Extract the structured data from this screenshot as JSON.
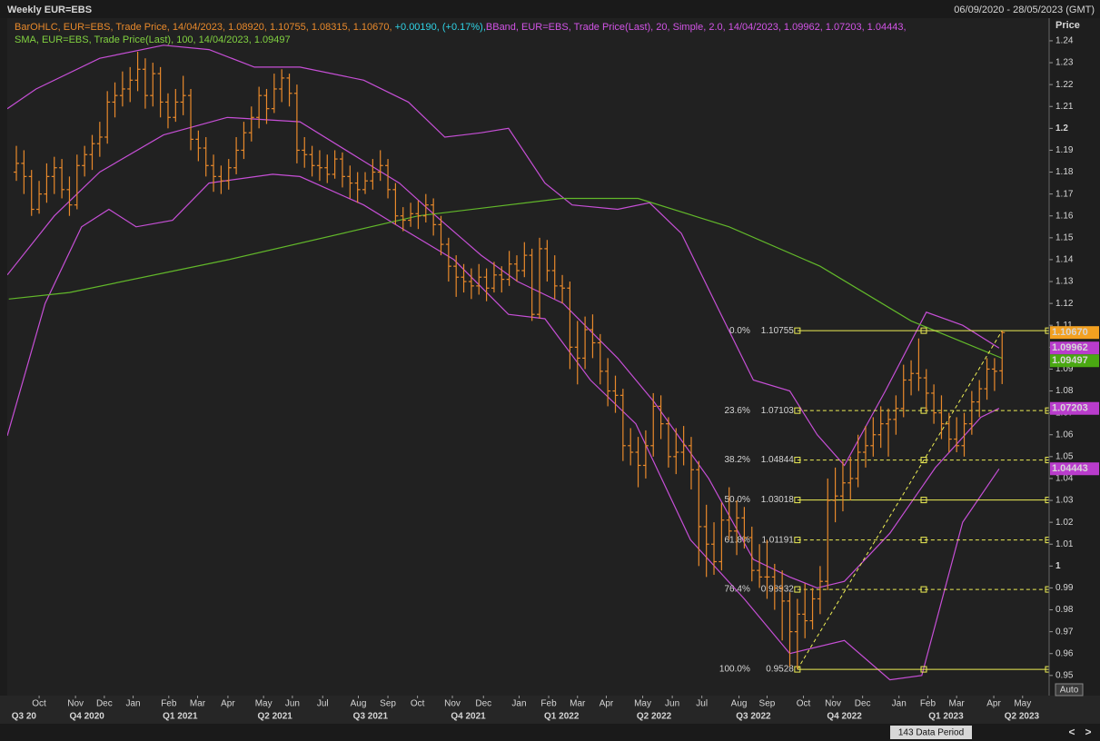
{
  "chart_data": {
    "type": "ohlc",
    "title": "Weekly EUR=EBS",
    "date_range": "06/09/2020 - 28/05/2023 (GMT)",
    "legend": {
      "ohlc": "BarOHLC, EUR=EBS, Trade Price,  14/04/2023, 1.08920, 1.10755, 1.08315, 1.10670,",
      "change": "+0.00190, (+0.17%),",
      "bband": "BBand, EUR=EBS, Trade Price(Last),  20, Simple, 2.0, 14/04/2023, 1.09962, 1.07203, 1.04443,",
      "sma": "SMA, EUR=EBS, Trade Price(Last),  100, 14/04/2023, 1.09497"
    },
    "legend_colors": {
      "ohlc": "#e8892b",
      "change": "#2fd3e6",
      "bband": "#d254e6",
      "sma": "#80d040"
    },
    "y_label": "Price",
    "color": "#e8892b",
    "ohlc": [
      [
        1.18,
        1.192,
        1.176,
        1.184
      ],
      [
        1.184,
        1.19,
        1.17,
        1.178
      ],
      [
        1.178,
        1.181,
        1.16,
        1.163
      ],
      [
        1.163,
        1.176,
        1.161,
        1.17
      ],
      [
        1.17,
        1.184,
        1.166,
        1.178
      ],
      [
        1.178,
        1.187,
        1.17,
        1.182
      ],
      [
        1.182,
        1.186,
        1.168,
        1.172
      ],
      [
        1.172,
        1.178,
        1.16,
        1.165
      ],
      [
        1.165,
        1.188,
        1.163,
        1.183
      ],
      [
        1.183,
        1.192,
        1.178,
        1.188
      ],
      [
        1.188,
        1.197,
        1.181,
        1.193
      ],
      [
        1.193,
        1.203,
        1.187,
        1.196
      ],
      [
        1.196,
        1.217,
        1.193,
        1.212
      ],
      [
        1.212,
        1.221,
        1.205,
        1.215
      ],
      [
        1.215,
        1.226,
        1.21,
        1.218
      ],
      [
        1.218,
        1.228,
        1.212,
        1.222
      ],
      [
        1.222,
        1.235,
        1.217,
        1.227
      ],
      [
        1.227,
        1.232,
        1.209,
        1.215
      ],
      [
        1.215,
        1.23,
        1.21,
        1.225
      ],
      [
        1.225,
        1.228,
        1.205,
        1.212
      ],
      [
        1.212,
        1.216,
        1.2,
        1.205
      ],
      [
        1.205,
        1.218,
        1.203,
        1.212
      ],
      [
        1.212,
        1.224,
        1.206,
        1.215
      ],
      [
        1.215,
        1.218,
        1.19,
        1.195
      ],
      [
        1.195,
        1.199,
        1.185,
        1.191
      ],
      [
        1.191,
        1.196,
        1.178,
        1.183
      ],
      [
        1.183,
        1.188,
        1.171,
        1.178
      ],
      [
        1.178,
        1.183,
        1.17,
        1.176
      ],
      [
        1.176,
        1.186,
        1.172,
        1.182
      ],
      [
        1.182,
        1.196,
        1.179,
        1.19
      ],
      [
        1.19,
        1.203,
        1.186,
        1.198
      ],
      [
        1.198,
        1.21,
        1.194,
        1.205
      ],
      [
        1.205,
        1.219,
        1.2,
        1.215
      ],
      [
        1.215,
        1.218,
        1.202,
        1.209
      ],
      [
        1.209,
        1.225,
        1.207,
        1.218
      ],
      [
        1.218,
        1.227,
        1.212,
        1.223
      ],
      [
        1.223,
        1.225,
        1.21,
        1.216
      ],
      [
        1.216,
        1.22,
        1.184,
        1.19
      ],
      [
        1.19,
        1.196,
        1.182,
        1.188
      ],
      [
        1.188,
        1.192,
        1.178,
        1.183
      ],
      [
        1.183,
        1.19,
        1.176,
        1.182
      ],
      [
        1.182,
        1.188,
        1.175,
        1.179
      ],
      [
        1.179,
        1.19,
        1.177,
        1.186
      ],
      [
        1.186,
        1.189,
        1.173,
        1.178
      ],
      [
        1.178,
        1.183,
        1.168,
        1.175
      ],
      [
        1.175,
        1.18,
        1.166,
        1.172
      ],
      [
        1.172,
        1.18,
        1.17,
        1.176
      ],
      [
        1.176,
        1.186,
        1.172,
        1.18
      ],
      [
        1.18,
        1.19,
        1.176,
        1.183
      ],
      [
        1.183,
        1.186,
        1.168,
        1.172
      ],
      [
        1.172,
        1.175,
        1.156,
        1.16
      ],
      [
        1.16,
        1.164,
        1.153,
        1.158
      ],
      [
        1.158,
        1.166,
        1.155,
        1.161
      ],
      [
        1.161,
        1.167,
        1.154,
        1.16
      ],
      [
        1.16,
        1.17,
        1.157,
        1.165
      ],
      [
        1.165,
        1.168,
        1.151,
        1.156
      ],
      [
        1.156,
        1.16,
        1.142,
        1.147
      ],
      [
        1.147,
        1.15,
        1.13,
        1.137
      ],
      [
        1.137,
        1.142,
        1.123,
        1.132
      ],
      [
        1.132,
        1.138,
        1.125,
        1.13
      ],
      [
        1.13,
        1.136,
        1.122,
        1.128
      ],
      [
        1.128,
        1.138,
        1.124,
        1.132
      ],
      [
        1.132,
        1.136,
        1.121,
        1.127
      ],
      [
        1.127,
        1.139,
        1.125,
        1.133
      ],
      [
        1.133,
        1.137,
        1.125,
        1.131
      ],
      [
        1.131,
        1.144,
        1.128,
        1.138
      ],
      [
        1.138,
        1.142,
        1.13,
        1.135
      ],
      [
        1.135,
        1.148,
        1.132,
        1.142
      ],
      [
        1.142,
        1.145,
        1.112,
        1.115
      ],
      [
        1.115,
        1.15,
        1.113,
        1.145
      ],
      [
        1.145,
        1.149,
        1.13,
        1.135
      ],
      [
        1.135,
        1.142,
        1.122,
        1.128
      ],
      [
        1.128,
        1.133,
        1.12,
        1.127
      ],
      [
        1.127,
        1.13,
        1.09,
        1.1
      ],
      [
        1.1,
        1.112,
        1.083,
        1.095
      ],
      [
        1.095,
        1.114,
        1.09,
        1.108
      ],
      [
        1.108,
        1.115,
        1.095,
        1.102
      ],
      [
        1.102,
        1.106,
        1.083,
        1.089
      ],
      [
        1.089,
        1.095,
        1.073,
        1.08
      ],
      [
        1.08,
        1.087,
        1.07,
        1.078
      ],
      [
        1.078,
        1.081,
        1.048,
        1.055
      ],
      [
        1.055,
        1.063,
        1.046,
        1.052
      ],
      [
        1.052,
        1.059,
        1.036,
        1.046
      ],
      [
        1.046,
        1.062,
        1.04,
        1.055
      ],
      [
        1.055,
        1.079,
        1.05,
        1.073
      ],
      [
        1.073,
        1.078,
        1.058,
        1.065
      ],
      [
        1.065,
        1.068,
        1.045,
        1.05
      ],
      [
        1.05,
        1.063,
        1.042,
        1.052
      ],
      [
        1.052,
        1.064,
        1.046,
        1.055
      ],
      [
        1.055,
        1.059,
        1.035,
        1.044
      ],
      [
        1.044,
        1.048,
        1.0,
        1.018
      ],
      [
        1.018,
        1.028,
        0.995,
        1.01
      ],
      [
        1.01,
        1.02,
        0.996,
        1.002
      ],
      [
        1.002,
        1.029,
        0.998,
        1.021
      ],
      [
        1.021,
        1.036,
        1.012,
        1.016
      ],
      [
        1.016,
        1.03,
        1.005,
        1.022
      ],
      [
        1.022,
        1.027,
        1.008,
        1.013
      ],
      [
        1.013,
        1.018,
        0.993,
        0.998
      ],
      [
        0.998,
        1.01,
        0.99,
        0.995
      ],
      [
        0.995,
        1.012,
        0.985,
        0.995
      ],
      [
        0.995,
        1.001,
        0.98,
        0.99
      ],
      [
        0.99,
        0.998,
        0.966,
        0.984
      ],
      [
        0.984,
        0.988,
        0.954,
        0.97
      ],
      [
        0.97,
        0.985,
        0.953,
        0.978
      ],
      [
        0.978,
        0.992,
        0.967,
        0.975
      ],
      [
        0.975,
        0.99,
        0.971,
        0.985
      ],
      [
        0.985,
        1.0,
        0.978,
        0.993
      ],
      [
        0.993,
        1.04,
        0.989,
        1.03
      ],
      [
        1.03,
        1.045,
        1.02,
        1.032
      ],
      [
        1.032,
        1.048,
        1.025,
        1.038
      ],
      [
        1.038,
        1.05,
        1.03,
        1.04
      ],
      [
        1.04,
        1.06,
        1.036,
        1.052
      ],
      [
        1.052,
        1.064,
        1.045,
        1.055
      ],
      [
        1.055,
        1.068,
        1.05,
        1.06
      ],
      [
        1.06,
        1.073,
        1.054,
        1.065
      ],
      [
        1.065,
        1.072,
        1.05,
        1.067
      ],
      [
        1.067,
        1.078,
        1.06,
        1.072
      ],
      [
        1.072,
        1.092,
        1.068,
        1.085
      ],
      [
        1.085,
        1.094,
        1.078,
        1.088
      ],
      [
        1.088,
        1.104,
        1.08,
        1.086
      ],
      [
        1.086,
        1.09,
        1.071,
        1.079
      ],
      [
        1.079,
        1.083,
        1.065,
        1.07
      ],
      [
        1.07,
        1.078,
        1.058,
        1.065
      ],
      [
        1.065,
        1.07,
        1.052,
        1.058
      ],
      [
        1.058,
        1.068,
        1.052,
        1.055
      ],
      [
        1.055,
        1.07,
        1.05,
        1.065
      ],
      [
        1.065,
        1.08,
        1.06,
        1.075
      ],
      [
        1.075,
        1.085,
        1.068,
        1.081
      ],
      [
        1.081,
        1.095,
        1.076,
        1.09
      ],
      [
        1.09,
        1.095,
        1.08,
        1.089
      ],
      [
        1.0892,
        1.10755,
        1.08315,
        1.1067
      ]
    ],
    "lines": [
      {
        "color": "#c64fd6",
        "x": [
          -1.2,
          2.6,
          11.0,
          19.4,
          25.4,
          31.4,
          37.4,
          45.8,
          51.7,
          56.5,
          61.3,
          64.9,
          69.7,
          73.3,
          79.3,
          83.5,
          87.7,
          92.5,
          97.2,
          102.0,
          105.6,
          109.2,
          114.6,
          120.0,
          124.8,
          129.6
        ],
        "values": [
          1.209,
          1.218,
          1.232,
          1.238,
          1.236,
          1.228,
          1.228,
          1.222,
          1.212,
          1.196,
          1.198,
          1.2,
          1.175,
          1.165,
          1.163,
          1.166,
          1.152,
          1.118,
          1.085,
          1.08,
          1.06,
          1.046,
          1.08,
          1.116,
          1.11,
          1.09962
        ]
      },
      {
        "color": "#c64fd6",
        "x": [
          -1.2,
          5.0,
          11.0,
          19.4,
          27.8,
          37.4,
          45.8,
          50.5,
          55.3,
          61.3,
          66.1,
          72.1,
          79.3,
          84.1,
          91.3,
          97.2,
          102.0,
          105.6,
          109.2,
          115.2,
          121.2,
          127.2,
          129.6
        ],
        "values": [
          1.133,
          1.16,
          1.18,
          1.197,
          1.205,
          1.203,
          1.185,
          1.175,
          1.16,
          1.142,
          1.13,
          1.12,
          1.095,
          1.075,
          1.04,
          1.003,
          0.995,
          0.99,
          0.993,
          1.015,
          1.045,
          1.068,
          1.07203
        ]
      },
      {
        "color": "#c64fd6",
        "x": [
          -1.2,
          3.8,
          8.6,
          12.2,
          15.8,
          20.6,
          25.4,
          33.8,
          37.4,
          45.8,
          50.5,
          57.7,
          64.9,
          69.7,
          75.7,
          81.7,
          88.9,
          96.0,
          102.0,
          109.2,
          115.2,
          119.4,
          124.8,
          129.6
        ],
        "values": [
          1.0595,
          1.12,
          1.155,
          1.163,
          1.155,
          1.158,
          1.175,
          1.179,
          1.178,
          1.165,
          1.155,
          1.14,
          1.115,
          1.113,
          1.085,
          1.065,
          1.012,
          0.985,
          0.96,
          0.966,
          0.948,
          0.95,
          1.02,
          1.04443
        ]
      },
      {
        "color": "#62b82a",
        "x": [
          -1,
          7,
          28,
          53,
          72,
          82,
          94,
          106,
          118,
          130
        ],
        "values": [
          1.122,
          1.125,
          1.14,
          1.16,
          1.168,
          1.168,
          1.155,
          1.137,
          1.112,
          1.09497
        ]
      }
    ],
    "xlim": [
      -1.2,
      136.2
    ],
    "ylim": [
      0.9408,
      1.2462
    ],
    "yticks": [
      0.95,
      0.96,
      0.97,
      0.98,
      0.99,
      1,
      1.01,
      1.02,
      1.03,
      1.04,
      1.05,
      1.06,
      1.07,
      1.08,
      1.09,
      1.1,
      1.11,
      1.12,
      1.13,
      1.14,
      1.15,
      1.16,
      1.17,
      1.18,
      1.19,
      1.2,
      1.21,
      1.22,
      1.23,
      1.24
    ],
    "xticks": [
      {
        "value": 3,
        "label": "Oct"
      },
      {
        "value": 7.8,
        "label": "Nov"
      },
      {
        "value": 11.6,
        "label": "Dec"
      },
      {
        "value": 15.4,
        "label": "Jan"
      },
      {
        "value": 20.1,
        "label": "Feb"
      },
      {
        "value": 23.9,
        "label": "Mar"
      },
      {
        "value": 27.9,
        "label": "Apr"
      },
      {
        "value": 32.6,
        "label": "May"
      },
      {
        "value": 36.4,
        "label": "Jun"
      },
      {
        "value": 40.4,
        "label": "Jul"
      },
      {
        "value": 45.1,
        "label": "Aug"
      },
      {
        "value": 49,
        "label": "Sep"
      },
      {
        "value": 52.9,
        "label": "Oct"
      },
      {
        "value": 57.5,
        "label": "Nov"
      },
      {
        "value": 61.6,
        "label": "Dec"
      },
      {
        "value": 66.3,
        "label": "Jan"
      },
      {
        "value": 70.2,
        "label": "Feb"
      },
      {
        "value": 74,
        "label": "Mar"
      },
      {
        "value": 77.8,
        "label": "Apr"
      },
      {
        "value": 82.6,
        "label": "May"
      },
      {
        "value": 86.5,
        "label": "Jun"
      },
      {
        "value": 90.4,
        "label": "Jul"
      },
      {
        "value": 95.3,
        "label": "Aug"
      },
      {
        "value": 99,
        "label": "Sep"
      },
      {
        "value": 103.8,
        "label": "Oct"
      },
      {
        "value": 107.7,
        "label": "Nov"
      },
      {
        "value": 111.6,
        "label": "Dec"
      },
      {
        "value": 116.4,
        "label": "Jan"
      },
      {
        "value": 120.2,
        "label": "Feb"
      },
      {
        "value": 124,
        "label": "Mar"
      },
      {
        "value": 128.9,
        "label": "Apr"
      },
      {
        "value": 132.7,
        "label": "May"
      }
    ],
    "quarter_ticks": [
      {
        "value": 1,
        "label": "Q3 20"
      },
      {
        "value": 9.3,
        "label": "Q4 2020"
      },
      {
        "value": 21.6,
        "label": "Q1 2021"
      },
      {
        "value": 34.1,
        "label": "Q2 2021"
      },
      {
        "value": 46.7,
        "label": "Q3 2021"
      },
      {
        "value": 59.6,
        "label": "Q4 2021"
      },
      {
        "value": 71.9,
        "label": "Q1 2022"
      },
      {
        "value": 84.1,
        "label": "Q2 2022"
      },
      {
        "value": 97.2,
        "label": "Q3 2022"
      },
      {
        "value": 109.2,
        "label": "Q4 2022"
      },
      {
        "value": 122.6,
        "label": "Q1 2023"
      },
      {
        "value": 132.6,
        "label": "Q2 2023"
      }
    ],
    "fib": {
      "color": "#eeee55",
      "start": 103,
      "end": 130,
      "levels": [
        {
          "label": "0.0%",
          "value": 1.10755,
          "dashed": false
        },
        {
          "label": "23.6%",
          "value": 1.07103,
          "dashed": true
        },
        {
          "label": "38.2%",
          "value": 1.04844,
          "dashed": true
        },
        {
          "label": "50.0%",
          "value": 1.03018,
          "dashed": false
        },
        {
          "label": "61.8%",
          "value": 1.01191,
          "dashed": true
        },
        {
          "label": "76.4%",
          "value": 0.98932,
          "dashed": true
        },
        {
          "label": "100.0%",
          "value": 0.9528,
          "dashed": false
        }
      ]
    },
    "tags": [
      {
        "value": {
          "value": 1.1067,
          "label": "1.10670"
        },
        "color": "#f3a020",
        "text_color": "#000000"
      },
      {
        "value": 1.09962,
        "color": "#b93ccc",
        "text_color": "#ffffff"
      },
      {
        "value": 1.09497,
        "color": "#4aa812",
        "text_color": "#ffffff"
      },
      {
        "value": 1.07203,
        "color": "#b93ccc",
        "text_color": "#ffffff"
      },
      {
        "value": 1.04443,
        "color": "#b93ccc",
        "text_color": "#ffffff"
      }
    ],
    "data_period": "143 Data Period",
    "auto": "Auto"
  }
}
